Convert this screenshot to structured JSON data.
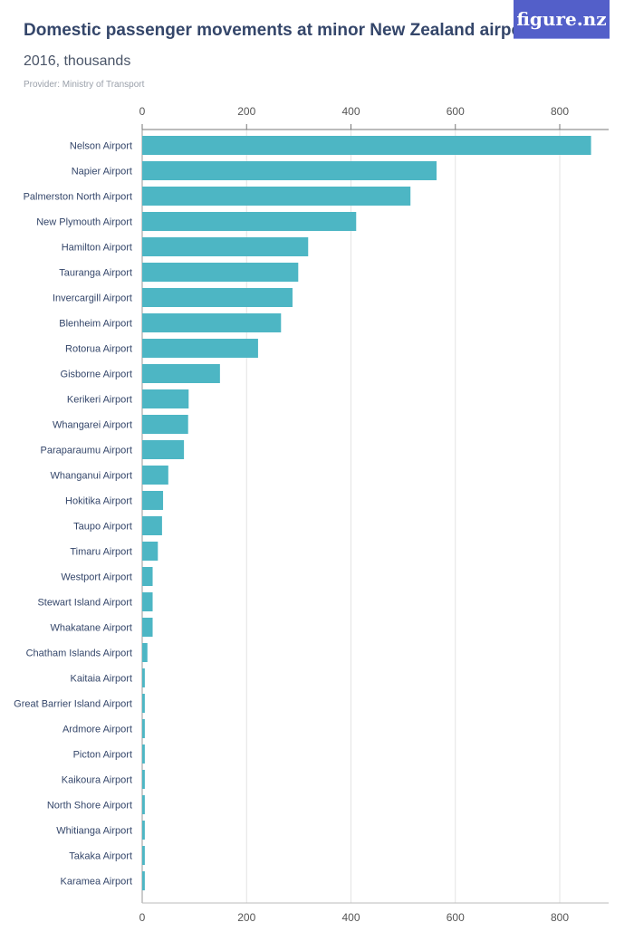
{
  "header": {
    "title": "Domestic passenger movements at minor New Zealand airports",
    "subtitle": "2016, thousands",
    "provider": "Provider: Ministry of Transport",
    "logo_text": "figure.nz"
  },
  "chart_data": {
    "type": "bar",
    "orientation": "horizontal",
    "title": "Domestic passenger movements at minor New Zealand airports",
    "subtitle": "2016, thousands",
    "xlim": [
      0,
      880
    ],
    "ticks": [
      0,
      200,
      400,
      600,
      800
    ],
    "grid": true,
    "bar_color": "#4db6c4",
    "categories": [
      "Nelson Airport",
      "Napier Airport",
      "Palmerston North Airport",
      "New Plymouth Airport",
      "Hamilton Airport",
      "Tauranga Airport",
      "Invercargill Airport",
      "Blenheim Airport",
      "Rotorua Airport",
      "Gisborne Airport",
      "Kerikeri Airport",
      "Whangarei Airport",
      "Paraparaumu Airport",
      "Whanganui Airport",
      "Hokitika Airport",
      "Taupo Airport",
      "Timaru Airport",
      "Westport Airport",
      "Stewart Island Airport",
      "Whakatane Airport",
      "Chatham Islands Airport",
      "Kaitaia Airport",
      "Great Barrier Island Airport",
      "Ardmore Airport",
      "Picton Airport",
      "Kaikoura Airport",
      "North Shore Airport",
      "Whitianga Airport",
      "Takaka Airport",
      "Karamea Airport"
    ],
    "values": [
      860,
      564,
      514,
      410,
      318,
      299,
      288,
      266,
      222,
      149,
      89,
      88,
      80,
      50,
      40,
      38,
      30,
      20,
      20,
      20,
      10,
      5,
      5,
      5,
      5,
      5,
      5,
      5,
      5,
      5
    ]
  }
}
